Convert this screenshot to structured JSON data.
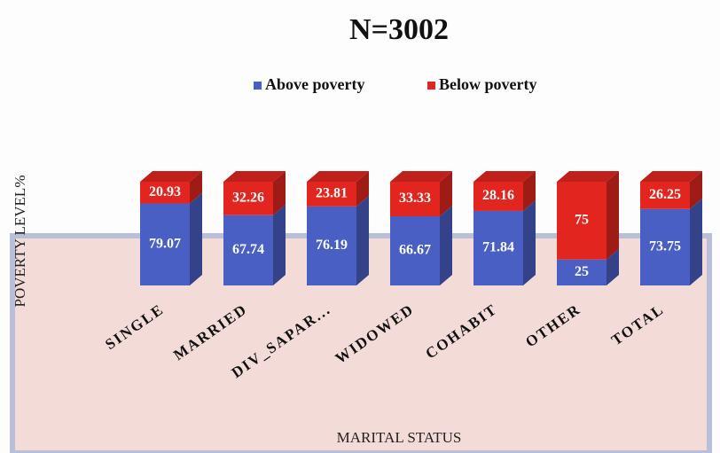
{
  "chart_data": {
    "type": "bar",
    "stacked": true,
    "title": "N=3002",
    "x_label": "MARITAL STATUS",
    "y_label": "POVERTY LEVEL%",
    "categories": [
      "SINGLE",
      "MARRIED",
      "DIV_SAPAR...",
      "WIDOWED",
      "COHABIT",
      "OTHER",
      "TOTAL"
    ],
    "series": [
      {
        "name": "Above poverty",
        "color": "#4a5fc4",
        "values": [
          79.07,
          67.74,
          76.19,
          66.67,
          71.84,
          25,
          73.75
        ]
      },
      {
        "name": "Below poverty",
        "color": "#e2261f",
        "values": [
          20.93,
          32.26,
          23.81,
          33.33,
          28.16,
          75,
          26.25
        ]
      }
    ],
    "ylim": [
      0,
      100
    ],
    "legend": "top"
  }
}
